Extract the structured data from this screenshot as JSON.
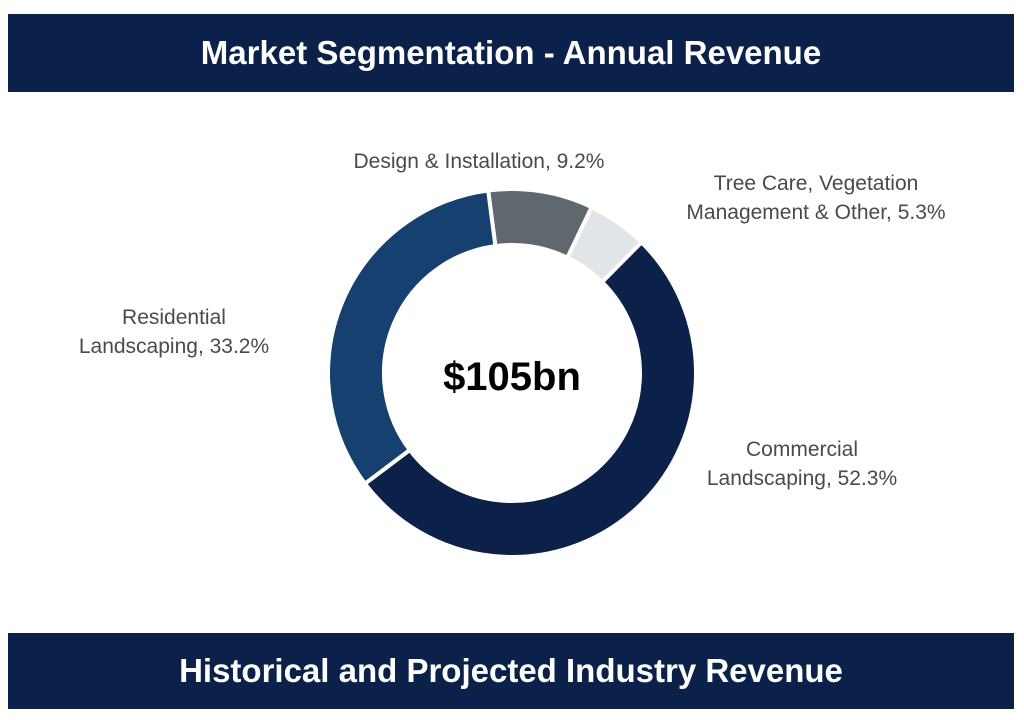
{
  "header": {
    "title": "Market Segmentation - Annual Revenue"
  },
  "footer": {
    "title": "Historical and Projected Industry Revenue"
  },
  "colors": {
    "banner": "#0c2149",
    "background": "#ffffff"
  },
  "chart_data": {
    "type": "pie",
    "style": "donut",
    "title": "Market Segmentation - Annual Revenue",
    "center_label": "$105bn",
    "start": "clockwise from top, Design & Installation first",
    "slices": [
      {
        "name": "Design & Installation",
        "value": 9.2,
        "color": "#5f686f",
        "label_lines": [
          "Design & Installation, 9.2%"
        ]
      },
      {
        "name": "Tree Care, Vegetation Management & Other",
        "value": 5.3,
        "color": "#e2e5e8",
        "label_lines": [
          "Tree Care, Vegetation",
          "Management & Other, 5.3%"
        ]
      },
      {
        "name": "Commercial Landscaping",
        "value": 52.3,
        "color": "#0c2149",
        "label_lines": [
          "Commercial",
          "Landscaping, 52.3%"
        ]
      },
      {
        "name": "Residential Landscaping",
        "value": 33.2,
        "color": "#16406f",
        "label_lines": [
          "Residential",
          "Landscaping, 33.2%"
        ]
      }
    ]
  }
}
